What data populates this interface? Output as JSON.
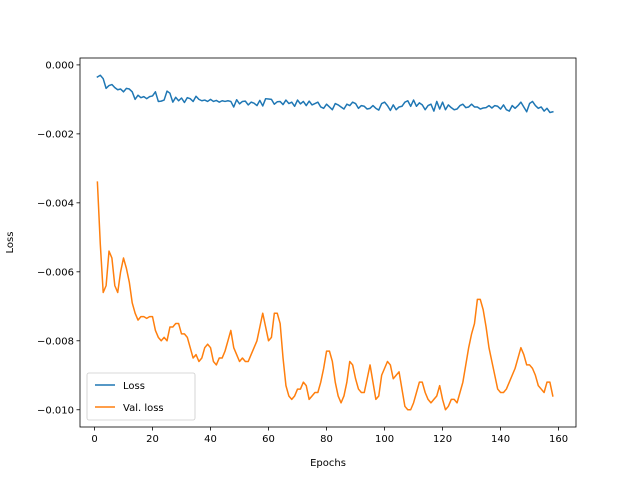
{
  "chart_data": {
    "type": "line",
    "xlabel": "Epochs",
    "ylabel": "Loss",
    "xlim": [
      -5,
      166
    ],
    "ylim": [
      -0.0105,
      0.0002
    ],
    "xticks": [
      0,
      20,
      40,
      60,
      80,
      100,
      120,
      140,
      160
    ],
    "xtick_labels": [
      "0",
      "20",
      "40",
      "60",
      "80",
      "100",
      "120",
      "140",
      "160"
    ],
    "yticks": [
      0.0,
      -0.002,
      -0.004,
      -0.006,
      -0.008,
      -0.01
    ],
    "ytick_labels": [
      "0.000",
      "−0.002",
      "−0.004",
      "−0.006",
      "−0.008",
      "−0.010"
    ],
    "legend_position": "lower-left",
    "grid": false,
    "series": [
      {
        "name": "Loss",
        "color": "#1f77b4",
        "x": [
          1,
          2,
          3,
          4,
          5,
          6,
          7,
          8,
          9,
          10,
          11,
          12,
          13,
          14,
          15,
          16,
          17,
          18,
          19,
          20,
          21,
          22,
          23,
          24,
          25,
          26,
          27,
          28,
          29,
          30,
          31,
          32,
          33,
          34,
          35,
          36,
          37,
          38,
          39,
          40,
          41,
          42,
          43,
          44,
          45,
          46,
          47,
          48,
          49,
          50,
          51,
          52,
          53,
          54,
          55,
          56,
          57,
          58,
          59,
          60,
          61,
          62,
          63,
          64,
          65,
          66,
          67,
          68,
          69,
          70,
          71,
          72,
          73,
          74,
          75,
          76,
          77,
          78,
          79,
          80,
          81,
          82,
          83,
          84,
          85,
          86,
          87,
          88,
          89,
          90,
          91,
          92,
          93,
          94,
          95,
          96,
          97,
          98,
          99,
          100,
          101,
          102,
          103,
          104,
          105,
          106,
          107,
          108,
          109,
          110,
          111,
          112,
          113,
          114,
          115,
          116,
          117,
          118,
          119,
          120,
          121,
          122,
          123,
          124,
          125,
          126,
          127,
          128,
          129,
          130,
          131,
          132,
          133,
          134,
          135,
          136,
          137,
          138,
          139,
          140,
          141,
          142,
          143,
          144,
          145,
          146,
          147,
          148,
          149,
          150,
          151,
          152,
          153,
          154,
          155,
          156,
          157,
          158
        ],
        "y": [
          -0.00035,
          -0.0003,
          -0.0004,
          -0.00068,
          -0.0006,
          -0.00057,
          -0.00066,
          -0.00072,
          -0.0007,
          -0.00078,
          -0.00068,
          -0.0007,
          -0.00078,
          -0.001,
          -0.00088,
          -0.00095,
          -0.00092,
          -0.00098,
          -0.00092,
          -0.0009,
          -0.00078,
          -0.00106,
          -0.00105,
          -0.00102,
          -0.00076,
          -0.00082,
          -0.00108,
          -0.00094,
          -0.00104,
          -0.00096,
          -0.00109,
          -0.00095,
          -0.00098,
          -0.00106,
          -0.00091,
          -0.001,
          -0.00104,
          -0.00102,
          -0.00106,
          -0.001,
          -0.00106,
          -0.00103,
          -0.00108,
          -0.00104,
          -0.00106,
          -0.00104,
          -0.00106,
          -0.00122,
          -0.00101,
          -0.00113,
          -0.00106,
          -0.00105,
          -0.00116,
          -0.00108,
          -0.00111,
          -0.00118,
          -0.00103,
          -0.00119,
          -0.00098,
          -0.00099,
          -0.001,
          -0.00114,
          -0.00107,
          -0.00106,
          -0.00115,
          -0.00102,
          -0.00112,
          -0.00108,
          -0.0012,
          -0.00102,
          -0.00113,
          -0.00106,
          -0.00118,
          -0.00105,
          -0.00116,
          -0.00112,
          -0.00108,
          -0.00122,
          -0.00126,
          -0.00114,
          -0.00122,
          -0.0013,
          -0.00112,
          -0.00116,
          -0.00122,
          -0.00128,
          -0.00114,
          -0.00118,
          -0.00108,
          -0.00112,
          -0.00126,
          -0.00118,
          -0.0012,
          -0.00128,
          -0.00126,
          -0.00118,
          -0.00126,
          -0.00131,
          -0.00112,
          -0.00108,
          -0.00118,
          -0.00132,
          -0.00116,
          -0.0013,
          -0.00122,
          -0.0012,
          -0.00108,
          -0.00104,
          -0.0012,
          -0.00102,
          -0.0012,
          -0.0011,
          -0.00116,
          -0.0013,
          -0.00118,
          -0.00114,
          -0.00134,
          -0.00106,
          -0.00128,
          -0.00108,
          -0.0013,
          -0.00116,
          -0.00124,
          -0.0013,
          -0.00128,
          -0.00118,
          -0.00114,
          -0.00124,
          -0.00122,
          -0.00114,
          -0.00122,
          -0.00122,
          -0.00128,
          -0.00125,
          -0.00124,
          -0.00118,
          -0.00125,
          -0.00118,
          -0.0012,
          -0.00128,
          -0.00116,
          -0.0013,
          -0.00134,
          -0.00118,
          -0.00126,
          -0.00118,
          -0.00108,
          -0.00122,
          -0.00136,
          -0.00112,
          -0.00106,
          -0.00118,
          -0.00126,
          -0.00122,
          -0.00134,
          -0.00126,
          -0.00138,
          -0.00136
        ],
        "comment_x_note": ""
      },
      {
        "name": "Val. loss",
        "color": "#ff7f0e",
        "x": [
          1,
          2,
          3,
          4,
          5,
          6,
          7,
          8,
          9,
          10,
          11,
          12,
          13,
          14,
          15,
          16,
          17,
          18,
          19,
          20,
          21,
          22,
          23,
          24,
          25,
          26,
          27,
          28,
          29,
          30,
          31,
          32,
          33,
          34,
          35,
          36,
          37,
          38,
          39,
          40,
          41,
          42,
          43,
          44,
          45,
          46,
          47,
          48,
          49,
          50,
          51,
          52,
          53,
          54,
          55,
          56,
          57,
          58,
          59,
          60,
          61,
          62,
          63,
          64,
          65,
          66,
          67,
          68,
          69,
          70,
          71,
          72,
          73,
          74,
          75,
          76,
          77,
          78,
          79,
          80,
          81,
          82,
          83,
          84,
          85,
          86,
          87,
          88,
          89,
          90,
          91,
          92,
          93,
          94,
          95,
          96,
          97,
          98,
          99,
          100,
          101,
          102,
          103,
          104,
          105,
          106,
          107,
          108,
          109,
          110,
          111,
          112,
          113,
          114,
          115,
          116,
          117,
          118,
          119,
          120,
          121,
          122,
          123,
          124,
          125,
          126,
          127,
          128,
          129,
          130,
          131,
          132,
          133,
          134,
          135,
          136,
          137,
          138,
          139,
          140,
          141,
          142,
          143,
          144,
          145,
          146,
          147,
          148,
          149,
          150,
          151,
          152,
          153,
          154,
          155,
          156,
          157,
          158
        ],
        "y": [
          -0.0034,
          -0.0052,
          -0.0066,
          -0.0064,
          -0.0054,
          -0.0056,
          -0.0064,
          -0.0066,
          -0.006,
          -0.0056,
          -0.0059,
          -0.0063,
          -0.0069,
          -0.0072,
          -0.0074,
          -0.0073,
          -0.0073,
          -0.00735,
          -0.0073,
          -0.0073,
          -0.0077,
          -0.0079,
          -0.008,
          -0.0079,
          -0.008,
          -0.0076,
          -0.0076,
          -0.0075,
          -0.0075,
          -0.0078,
          -0.0078,
          -0.0079,
          -0.0082,
          -0.0085,
          -0.0084,
          -0.0086,
          -0.0085,
          -0.0082,
          -0.0081,
          -0.0082,
          -0.0086,
          -0.0087,
          -0.0085,
          -0.0085,
          -0.0083,
          -0.008,
          -0.0077,
          -0.0082,
          -0.0084,
          -0.0086,
          -0.0085,
          -0.0086,
          -0.0086,
          -0.0084,
          -0.0082,
          -0.008,
          -0.0076,
          -0.0072,
          -0.0076,
          -0.008,
          -0.0079,
          -0.0072,
          -0.0072,
          -0.0075,
          -0.0085,
          -0.0093,
          -0.0096,
          -0.0097,
          -0.0096,
          -0.0094,
          -0.0094,
          -0.0092,
          -0.0093,
          -0.0097,
          -0.0096,
          -0.0095,
          -0.0095,
          -0.0092,
          -0.0088,
          -0.0083,
          -0.0083,
          -0.0086,
          -0.0092,
          -0.0096,
          -0.0098,
          -0.0096,
          -0.0092,
          -0.0086,
          -0.0087,
          -0.0091,
          -0.0094,
          -0.0095,
          -0.0095,
          -0.0091,
          -0.0087,
          -0.0092,
          -0.0097,
          -0.0096,
          -0.009,
          -0.0088,
          -0.0086,
          -0.0087,
          -0.0091,
          -0.009,
          -0.0089,
          -0.0094,
          -0.0099,
          -0.01,
          -0.01,
          -0.0098,
          -0.0095,
          -0.0092,
          -0.0092,
          -0.0095,
          -0.0097,
          -0.0098,
          -0.0097,
          -0.0096,
          -0.0093,
          -0.0097,
          -0.01,
          -0.0099,
          -0.0097,
          -0.0097,
          -0.0098,
          -0.0095,
          -0.0092,
          -0.0087,
          -0.0082,
          -0.0078,
          -0.0075,
          -0.0068,
          -0.0068,
          -0.0071,
          -0.0076,
          -0.0082,
          -0.0086,
          -0.009,
          -0.0094,
          -0.0095,
          -0.0095,
          -0.0094,
          -0.0092,
          -0.009,
          -0.0088,
          -0.0085,
          -0.0082,
          -0.0084,
          -0.0087,
          -0.0087,
          -0.0088,
          -0.009,
          -0.0093,
          -0.0094,
          -0.0095,
          -0.0092,
          -0.0092,
          -0.0096
        ]
      }
    ]
  }
}
